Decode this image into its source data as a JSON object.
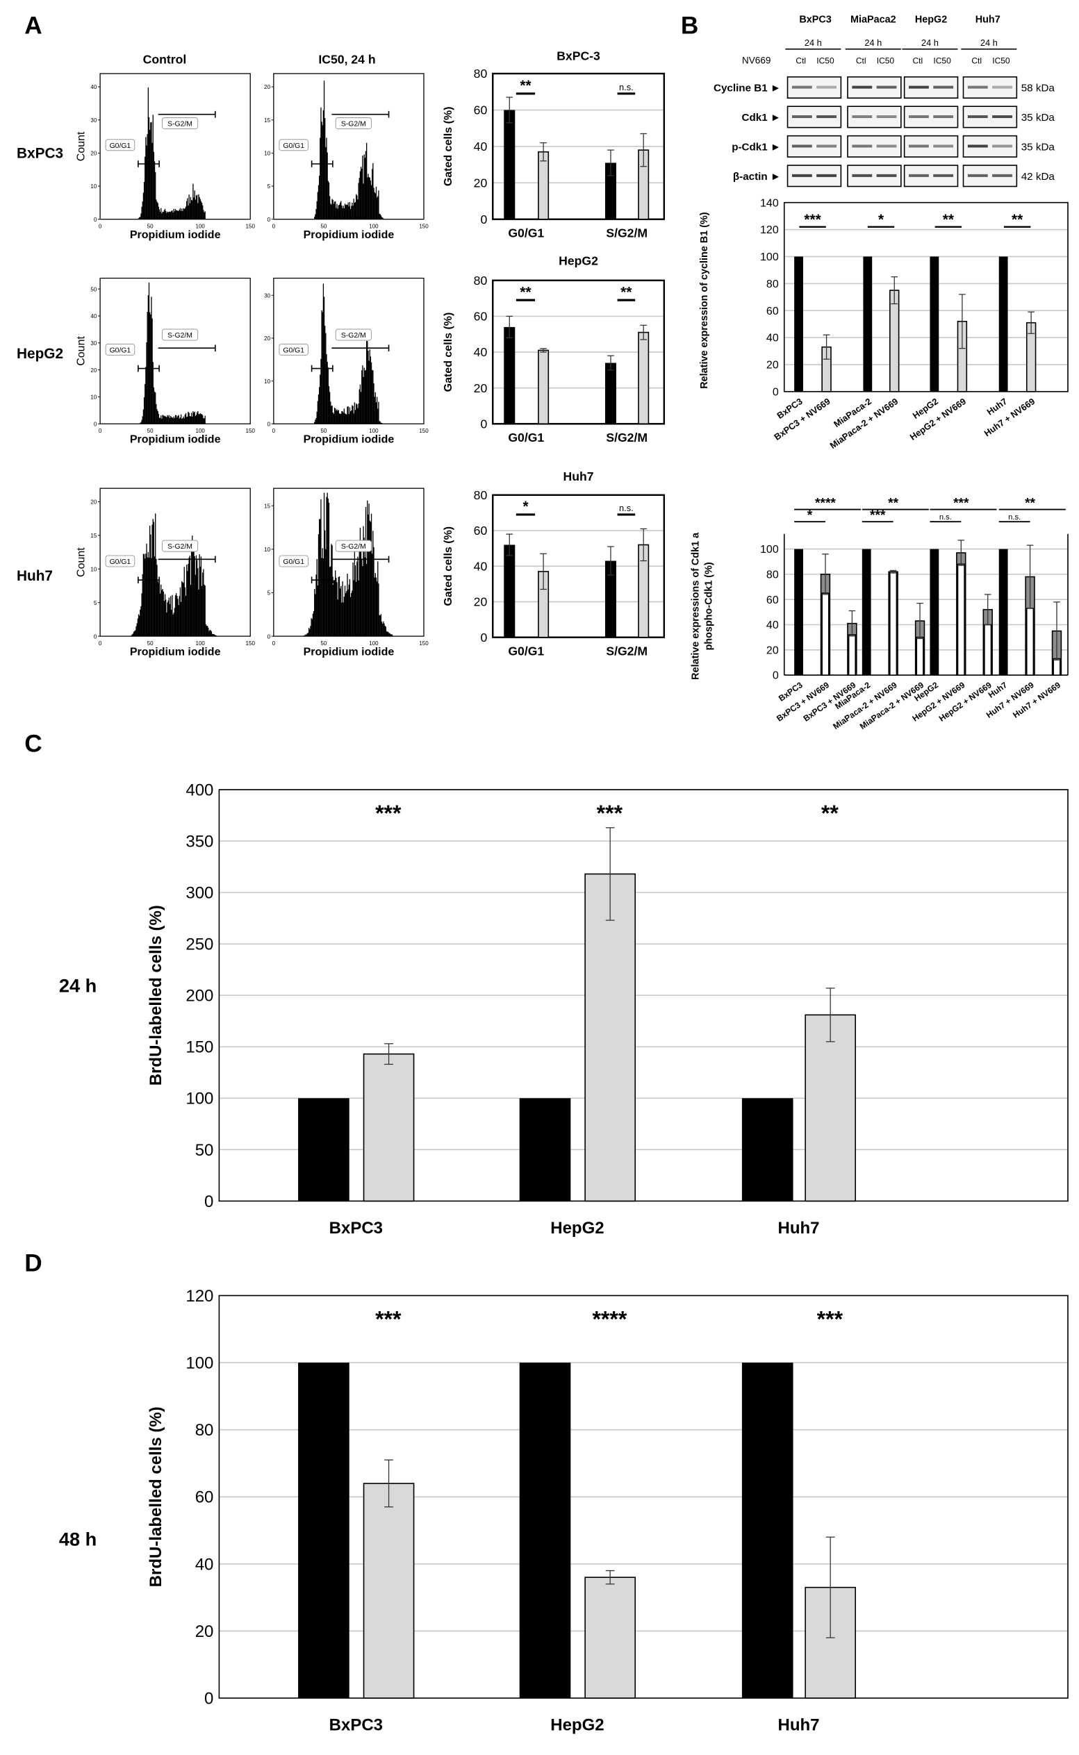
{
  "panel_labels": {
    "A": "A",
    "B": "B",
    "C": "C",
    "D": "D"
  },
  "panelA": {
    "columns": [
      "Control",
      "IC50, 24 h"
    ],
    "rows": [
      "BxPC3",
      "HepG2",
      "Huh7"
    ],
    "histogram": {
      "xlabel": "Propidium iodide",
      "ylabel": "Count",
      "x_ticks": [
        "0",
        "50",
        "100",
        "150"
      ],
      "gate_labels": [
        "G0/G1",
        "S-G2/M"
      ],
      "y_ticks": [
        [
          [
            "0",
            "10",
            "20",
            "30",
            "40"
          ],
          [
            "0",
            "5",
            "10",
            "15",
            "20"
          ]
        ],
        [
          [
            "0",
            "10",
            "20",
            "30",
            "40",
            "50"
          ],
          [
            "0",
            "10",
            "20",
            "30"
          ]
        ],
        [
          [
            "0",
            "5",
            "10",
            "15",
            "20"
          ],
          [
            "0",
            "5",
            "10",
            "15"
          ]
        ]
      ]
    }
  },
  "panelB": {
    "cell_lines": [
      "BxPC3",
      "MiaPaca2",
      "HepG2",
      "Huh7"
    ],
    "time": "24 h",
    "treatment_label": "NV669",
    "lanes": [
      "Ctl",
      "IC50"
    ],
    "blot_rows": [
      {
        "label": "Cycline B1 ►",
        "size": "58 kDa"
      },
      {
        "label": "Cdk1 ►",
        "size": "35 kDa"
      },
      {
        "label": "p-Cdk1 ►",
        "size": "35 kDa"
      },
      {
        "label": "β-actin ►",
        "size": "42 kDa"
      }
    ]
  },
  "panelCD": {
    "C_time": "24 h",
    "D_time": "48 h"
  },
  "colors": {
    "control": "#000000",
    "treated": "#d9d9d9",
    "grid": "#c8c8c8",
    "phospho_overlay": "#8c8c8c"
  },
  "chart_data": [
    {
      "id": "A1",
      "type": "bar",
      "title": "BxPC-3",
      "ylabel": "Gated cells (%)",
      "ylim": [
        0,
        80
      ],
      "yticks": [
        "0",
        "20",
        "40",
        "60",
        "80"
      ],
      "categories": [
        "G0/G1",
        "S/G2/M"
      ],
      "series": [
        {
          "values": [
            60,
            31
          ],
          "errors": [
            7,
            7
          ]
        },
        {
          "values": [
            37,
            38
          ],
          "errors": [
            5,
            9
          ]
        }
      ],
      "significance": [
        "**",
        "n.s."
      ],
      "grid": true
    },
    {
      "id": "A2",
      "type": "bar",
      "title": "HepG2",
      "ylabel": "Gated cells (%)",
      "ylim": [
        0,
        80
      ],
      "yticks": [
        "0",
        "20",
        "40",
        "60",
        "80"
      ],
      "categories": [
        "G0/G1",
        "S/G2/M"
      ],
      "series": [
        {
          "values": [
            54,
            34
          ],
          "errors": [
            6,
            4
          ]
        },
        {
          "values": [
            41,
            51
          ],
          "errors": [
            1,
            4
          ]
        }
      ],
      "significance": [
        "**",
        "**"
      ],
      "grid": true
    },
    {
      "id": "A3",
      "type": "bar",
      "title": "Huh7",
      "ylabel": "Gated cells (%)",
      "ylim": [
        0,
        80
      ],
      "yticks": [
        "0",
        "20",
        "40",
        "60",
        "80"
      ],
      "categories": [
        "G0/G1",
        "S/G2/M"
      ],
      "series": [
        {
          "values": [
            52,
            43
          ],
          "errors": [
            6,
            8
          ]
        },
        {
          "values": [
            37,
            52
          ],
          "errors": [
            10,
            9
          ]
        }
      ],
      "significance": [
        "*",
        "n.s."
      ],
      "grid": true
    },
    {
      "id": "B1",
      "type": "bar",
      "ylabel": "Relative expression of cycline B1 (%)",
      "ylim": [
        0,
        140
      ],
      "yticks": [
        "0",
        "20",
        "40",
        "60",
        "80",
        "100",
        "120",
        "140"
      ],
      "categories": [
        "BxPC3",
        "BxPC3 + NV669",
        "MiaPaca-2",
        "MiaPaca-2 + NV669",
        "HepG2",
        "HepG2 + NV669",
        "Huh7",
        "Huh7 + NV669"
      ],
      "values": [
        100,
        33,
        100,
        75,
        100,
        52,
        100,
        51
      ],
      "errors": [
        0,
        9,
        0,
        10,
        0,
        20,
        0,
        8
      ],
      "significance": [
        "***",
        "*",
        "**",
        "**"
      ],
      "grid": true
    },
    {
      "id": "B2",
      "type": "bar",
      "ylabel": [
        "Relative expressions of Cdk1 a",
        "phospho-Cdk1 (%)"
      ],
      "ylim": [
        0,
        112
      ],
      "yticks": [
        "0",
        "20",
        "40",
        "60",
        "80",
        "100",
        "120"
      ],
      "categories": [
        "BxPC3",
        "BxPC3 + NV669",
        "BxPC3 + NV669",
        "MiaPaca-2",
        "MiaPaca-2 + NV669",
        "MiaPaca-2 + NV669",
        "HepG2",
        "HepG2 + NV669",
        "HepG2 + NV669",
        "Huh7",
        "Huh7 + NV669",
        "Huh7 + NV669"
      ],
      "values": [
        100,
        80,
        41,
        100,
        82,
        43,
        100,
        97,
        52,
        100,
        78,
        35
      ],
      "inner_values": [
        100,
        65,
        32,
        100,
        82,
        30,
        100,
        88,
        40,
        100,
        53,
        13
      ],
      "errors": [
        0,
        16,
        10,
        0,
        1,
        14,
        0,
        10,
        12,
        0,
        25,
        23
      ],
      "significance": [
        {
          "long": "****",
          "short": "*"
        },
        {
          "long": "**",
          "short": "***"
        },
        {
          "long": "***",
          "short": "n.s."
        },
        {
          "long": "**",
          "short": "n.s."
        }
      ],
      "grid": true
    },
    {
      "id": "C",
      "type": "bar",
      "ylabel": "BrdU-labelled cells (%)",
      "ylim": [
        0,
        400
      ],
      "yticks": [
        "0",
        "50",
        "100",
        "150",
        "200",
        "250",
        "300",
        "350",
        "400"
      ],
      "categories": [
        "BxPC3",
        "HepG2",
        "Huh7"
      ],
      "series": [
        {
          "values": [
            100,
            100,
            100
          ],
          "errors": [
            0,
            0,
            0
          ]
        },
        {
          "values": [
            143,
            318,
            181
          ],
          "errors": [
            10,
            45,
            26
          ]
        }
      ],
      "significance": [
        "***",
        "***",
        "**"
      ],
      "grid": true
    },
    {
      "id": "D",
      "type": "bar",
      "ylabel": "BrdU-labelled cells (%)",
      "ylim": [
        0,
        120
      ],
      "yticks": [
        "0",
        "20",
        "40",
        "60",
        "80",
        "100",
        "120"
      ],
      "categories": [
        "BxPC3",
        "HepG2",
        "Huh7"
      ],
      "series": [
        {
          "values": [
            100,
            100,
            100
          ],
          "errors": [
            0,
            0,
            0
          ]
        },
        {
          "values": [
            64,
            36,
            33
          ],
          "errors": [
            7,
            2,
            15
          ]
        }
      ],
      "significance": [
        "***",
        "****",
        "***"
      ],
      "grid": true
    }
  ]
}
